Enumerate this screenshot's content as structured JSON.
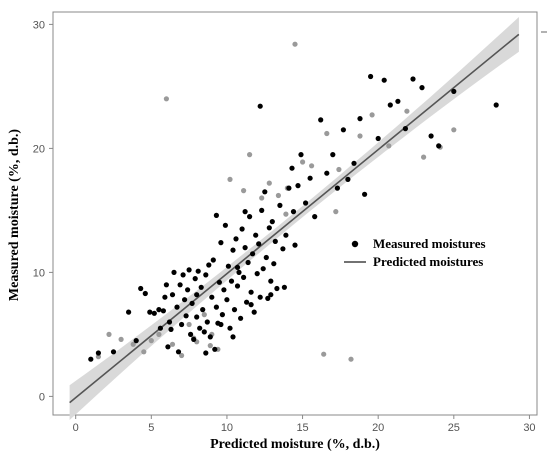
{
  "chart_data": {
    "type": "scatter",
    "xlabel": "Predicted moisture (%, d.b.)",
    "ylabel": "Measured moisture (%, d.b.)",
    "xlim": [
      -1.5,
      30.5
    ],
    "ylim": [
      -1.5,
      31
    ],
    "xticks": [
      "0",
      "5",
      "10",
      "15",
      "20",
      "25",
      "30"
    ],
    "yticks": [
      "0",
      "10",
      "20",
      "30"
    ],
    "grid": false,
    "legend_position": "right",
    "regression_line": {
      "name": "Predicted moistures",
      "x": [
        -0.4,
        29.3
      ],
      "y": [
        -0.5,
        29.2
      ],
      "band_halfwidth_ends": 1.4,
      "band_halfwidth_mid": 0.45,
      "color": "#555555",
      "band_color": "#d9d9d9"
    },
    "legend": [
      {
        "label": "Measured moistures",
        "marker": "dot"
      },
      {
        "label": "Predicted moistures",
        "marker": "line"
      }
    ],
    "series": [
      {
        "name": "Measured moistures",
        "color": "#000000",
        "points": [
          [
            1.0,
            3.0
          ],
          [
            1.5,
            3.5
          ],
          [
            2.5,
            3.6
          ],
          [
            3.5,
            6.8
          ],
          [
            4.0,
            4.5
          ],
          [
            4.3,
            8.7
          ],
          [
            4.6,
            8.3
          ],
          [
            4.9,
            6.8
          ],
          [
            5.2,
            6.7
          ],
          [
            5.5,
            7.0
          ],
          [
            5.6,
            5.5
          ],
          [
            5.8,
            6.9
          ],
          [
            6.0,
            9.0
          ],
          [
            6.1,
            4.0
          ],
          [
            6.2,
            6.0
          ],
          [
            6.3,
            5.4
          ],
          [
            6.4,
            8.2
          ],
          [
            6.5,
            10.0
          ],
          [
            6.7,
            7.2
          ],
          [
            6.8,
            3.6
          ],
          [
            7.0,
            5.8
          ],
          [
            7.1,
            9.8
          ],
          [
            7.3,
            6.5
          ],
          [
            7.4,
            8.6
          ],
          [
            7.5,
            10.2
          ],
          [
            7.6,
            5.0
          ],
          [
            7.7,
            7.5
          ],
          [
            7.8,
            4.6
          ],
          [
            7.9,
            9.5
          ],
          [
            8.0,
            6.4
          ],
          [
            8.1,
            10.1
          ],
          [
            8.2,
            5.5
          ],
          [
            8.3,
            8.8
          ],
          [
            8.4,
            7.0
          ],
          [
            8.5,
            5.2
          ],
          [
            8.6,
            9.8
          ],
          [
            8.7,
            6.0
          ],
          [
            8.8,
            10.6
          ],
          [
            8.9,
            4.8
          ],
          [
            9.0,
            8.0
          ],
          [
            9.1,
            11.0
          ],
          [
            9.2,
            3.8
          ],
          [
            9.3,
            7.2
          ],
          [
            9.4,
            5.9
          ],
          [
            9.5,
            9.2
          ],
          [
            9.6,
            12.4
          ],
          [
            9.7,
            6.6
          ],
          [
            9.8,
            8.6
          ],
          [
            9.9,
            13.8
          ],
          [
            10.0,
            7.8
          ],
          [
            10.1,
            10.5
          ],
          [
            10.2,
            5.5
          ],
          [
            10.3,
            9.3
          ],
          [
            10.4,
            11.8
          ],
          [
            10.5,
            7.0
          ],
          [
            10.6,
            12.7
          ],
          [
            10.7,
            8.9
          ],
          [
            10.8,
            10.0
          ],
          [
            10.9,
            6.3
          ],
          [
            11.0,
            13.5
          ],
          [
            11.1,
            9.6
          ],
          [
            11.2,
            12.0
          ],
          [
            11.3,
            7.6
          ],
          [
            11.4,
            10.8
          ],
          [
            11.5,
            14.5
          ],
          [
            11.6,
            8.4
          ],
          [
            11.7,
            11.5
          ],
          [
            11.8,
            6.8
          ],
          [
            11.9,
            13.0
          ],
          [
            12.0,
            9.9
          ],
          [
            12.1,
            12.3
          ],
          [
            12.2,
            8.0
          ],
          [
            12.3,
            15.0
          ],
          [
            12.4,
            10.3
          ],
          [
            12.5,
            16.5
          ],
          [
            12.6,
            11.2
          ],
          [
            12.7,
            7.9
          ],
          [
            12.8,
            13.6
          ],
          [
            12.9,
            9.3
          ],
          [
            13.0,
            14.1
          ],
          [
            13.1,
            10.7
          ],
          [
            13.2,
            12.5
          ],
          [
            13.3,
            8.7
          ],
          [
            13.5,
            15.4
          ],
          [
            13.7,
            11.9
          ],
          [
            13.9,
            13.0
          ],
          [
            14.1,
            16.8
          ],
          [
            14.3,
            18.4
          ],
          [
            14.5,
            12.2
          ],
          [
            14.7,
            17.0
          ],
          [
            14.9,
            19.5
          ],
          [
            15.2,
            15.6
          ],
          [
            15.5,
            17.6
          ],
          [
            15.8,
            14.5
          ],
          [
            16.2,
            22.3
          ],
          [
            16.6,
            18.0
          ],
          [
            17.0,
            19.5
          ],
          [
            17.3,
            16.8
          ],
          [
            17.7,
            21.5
          ],
          [
            18.0,
            17.5
          ],
          [
            18.4,
            18.8
          ],
          [
            18.8,
            22.4
          ],
          [
            19.1,
            16.3
          ],
          [
            19.5,
            25.8
          ],
          [
            20.0,
            20.8
          ],
          [
            20.4,
            25.5
          ],
          [
            20.8,
            23.5
          ],
          [
            21.3,
            23.8
          ],
          [
            21.8,
            21.6
          ],
          [
            22.3,
            25.6
          ],
          [
            22.9,
            24.9
          ],
          [
            23.5,
            21.0
          ],
          [
            24.0,
            20.2
          ],
          [
            25.0,
            24.6
          ],
          [
            27.8,
            23.5
          ],
          [
            8.6,
            3.5
          ],
          [
            9.6,
            5.8
          ],
          [
            10.4,
            4.8
          ],
          [
            11.6,
            7.4
          ],
          [
            12.2,
            23.4
          ],
          [
            12.9,
            8.2
          ],
          [
            13.8,
            8.8
          ],
          [
            14.4,
            14.9
          ],
          [
            5.9,
            8.0
          ],
          [
            6.9,
            9.0
          ],
          [
            7.2,
            7.8
          ],
          [
            8.0,
            8.2
          ],
          [
            10.7,
            10.4
          ],
          [
            11.2,
            14.9
          ],
          [
            9.3,
            14.6
          ]
        ]
      },
      {
        "name": "gray points",
        "color": "#9a9a9a",
        "points": [
          [
            1.5,
            3.2
          ],
          [
            2.2,
            5.0
          ],
          [
            3.0,
            4.6
          ],
          [
            3.8,
            4.2
          ],
          [
            4.5,
            3.6
          ],
          [
            5.0,
            4.5
          ],
          [
            5.5,
            5.0
          ],
          [
            6.0,
            24.0
          ],
          [
            6.4,
            4.2
          ],
          [
            7.0,
            3.3
          ],
          [
            7.5,
            5.8
          ],
          [
            8.0,
            4.4
          ],
          [
            8.5,
            6.6
          ],
          [
            9.0,
            5.0
          ],
          [
            9.4,
            3.8
          ],
          [
            10.2,
            17.5
          ],
          [
            11.1,
            16.6
          ],
          [
            11.5,
            19.5
          ],
          [
            12.3,
            16.0
          ],
          [
            12.8,
            17.2
          ],
          [
            13.4,
            16.2
          ],
          [
            14.0,
            16.8
          ],
          [
            14.5,
            28.4
          ],
          [
            15.0,
            18.9
          ],
          [
            15.6,
            18.6
          ],
          [
            16.4,
            3.4
          ],
          [
            16.6,
            21.2
          ],
          [
            17.4,
            18.3
          ],
          [
            18.2,
            3.0
          ],
          [
            18.8,
            21.0
          ],
          [
            19.6,
            22.7
          ],
          [
            20.7,
            20.2
          ],
          [
            21.9,
            23.0
          ],
          [
            23.0,
            19.3
          ],
          [
            24.1,
            20.1
          ],
          [
            25.0,
            21.5
          ],
          [
            7.8,
            4.7
          ],
          [
            8.9,
            4.1
          ],
          [
            13.9,
            14.7
          ],
          [
            17.2,
            14.9
          ]
        ]
      }
    ]
  }
}
